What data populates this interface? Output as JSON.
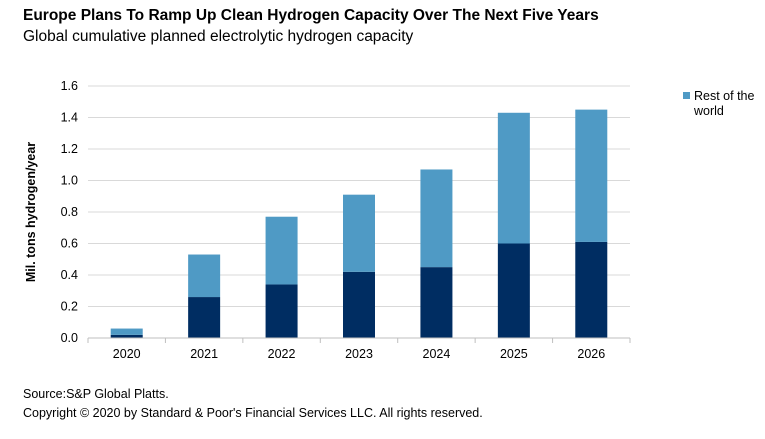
{
  "header": {
    "title": "Europe Plans To Ramp Up Clean Hydrogen Capacity Over The Next Five Years",
    "subtitle": "Global cumulative planned electrolytic hydrogen capacity"
  },
  "footer": {
    "source": "Source:S&P Global Platts.",
    "copyright": "Copyright © 2020 by Standard & Poor's Financial Services LLC. All rights reserved."
  },
  "chart_data": {
    "type": "bar",
    "stacked": true,
    "categories": [
      "2020",
      "2021",
      "2022",
      "2023",
      "2024",
      "2025",
      "2026"
    ],
    "series": [
      {
        "values": [
          0.02,
          0.26,
          0.34,
          0.42,
          0.45,
          0.6,
          0.61
        ],
        "color": "#002D62"
      },
      {
        "name": "Rest of the world",
        "values": [
          0.04,
          0.27,
          0.43,
          0.49,
          0.62,
          0.83,
          0.84
        ],
        "color": "#4F9AC5"
      }
    ],
    "ylabel": "Mil. tons hydrogen/year",
    "ylim": [
      0,
      1.6
    ],
    "yticks": [
      "0.0",
      "0.2",
      "0.4",
      "0.6",
      "0.8",
      "1.0",
      "1.2",
      "1.4",
      "1.6"
    ],
    "yticks_values": [
      0,
      0.2,
      0.4,
      0.6,
      0.8,
      1.0,
      1.2,
      1.4,
      1.6
    ],
    "grid": true,
    "legend": {
      "position": "right",
      "entries": [
        "Rest of the world"
      ]
    }
  }
}
